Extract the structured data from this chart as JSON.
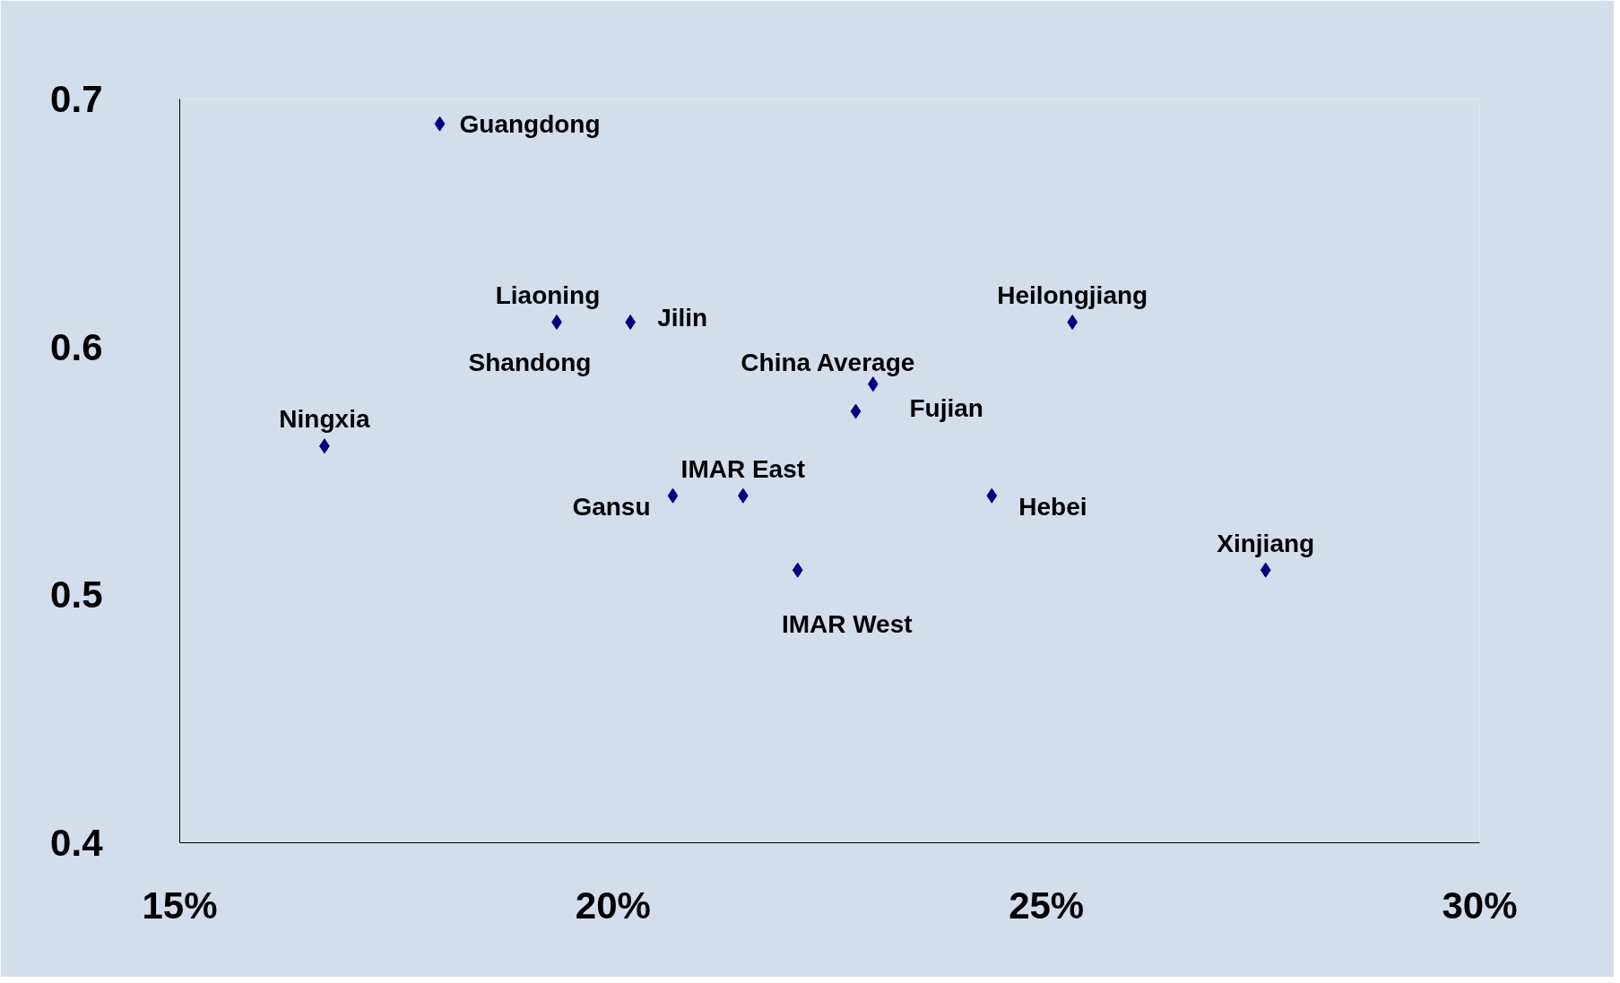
{
  "chart_data": {
    "type": "scatter",
    "marker": "diamond",
    "grid": false,
    "series": [
      {
        "color": "#000080",
        "x": [
          18.0,
          19.35,
          20.2,
          16.67,
          20.69,
          21.5,
          22.13,
          23.0,
          22.8,
          24.37,
          25.3,
          27.53
        ],
        "values": [
          0.69,
          0.61,
          0.61,
          0.56,
          0.54,
          0.54,
          0.51,
          0.585,
          0.574,
          0.54,
          0.61,
          0.51
        ]
      }
    ],
    "xlim": [
      15,
      30
    ],
    "xticks": [
      {
        "value": 15,
        "label": "15%"
      },
      {
        "value": 20,
        "label": "20%"
      },
      {
        "value": 25,
        "label": "25%"
      },
      {
        "value": 30,
        "label": "30%"
      }
    ],
    "ylim": [
      0.4,
      0.7
    ],
    "yticks": [
      0.4,
      0.5,
      0.6,
      0.7
    ],
    "annotations": [
      {
        "text": "Guangdong",
        "x": 18.0,
        "y": 0.69
      },
      {
        "text": "Liaoning",
        "x": 19.35,
        "y": 0.61
      },
      {
        "text": "Shandong",
        "x": 19.35,
        "y": 0.61
      },
      {
        "text": "Jilin",
        "x": 20.2,
        "y": 0.61
      },
      {
        "text": "Ningxia",
        "x": 16.67,
        "y": 0.56
      },
      {
        "text": "Gansu",
        "x": 20.69,
        "y": 0.54
      },
      {
        "text": "IMAR East",
        "x": 21.5,
        "y": 0.54
      },
      {
        "text": "IMAR West",
        "x": 22.13,
        "y": 0.51
      },
      {
        "text": "China Average",
        "x": 23.0,
        "y": 0.585
      },
      {
        "text": "Fujian",
        "x": 22.8,
        "y": 0.574
      },
      {
        "text": "Hebei",
        "x": 24.37,
        "y": 0.54
      },
      {
        "text": "Heilongjiang",
        "x": 25.3,
        "y": 0.61
      },
      {
        "text": "Xinjiang",
        "x": 27.53,
        "y": 0.51
      }
    ]
  }
}
